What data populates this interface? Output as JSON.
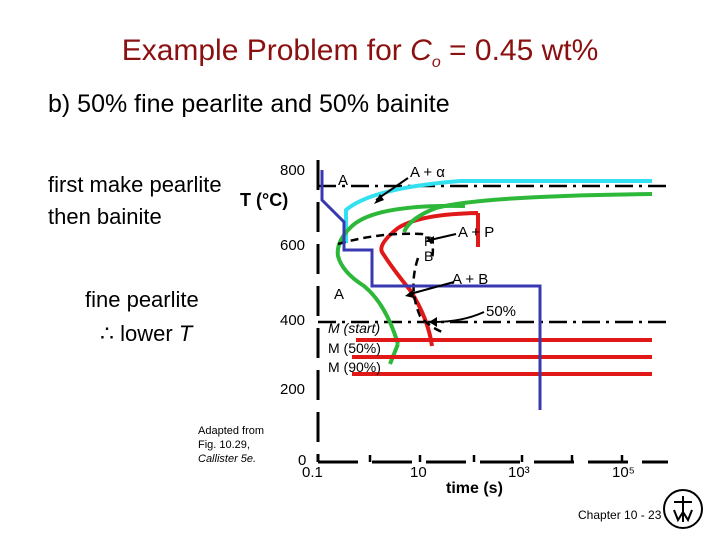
{
  "title": {
    "prefix": "Example Problem for ",
    "var": "C",
    "sub": "o",
    "suffix": " = 0.45 wt%"
  },
  "subtitle": "b) 50% fine pearlite and 50% bainite",
  "notes": {
    "line1": "first make pearlite",
    "line2": "then bainite",
    "line3": "fine pearlite",
    "therefore": "∴",
    "line4_text": "lower ",
    "line4_var": "T"
  },
  "axes": {
    "ylabel": "T (°C)",
    "xlabel": "time (s)",
    "yticks": [
      "800",
      "600",
      "400",
      "200",
      "0"
    ],
    "xticks": [
      "0.1",
      "10",
      "10³",
      "10⁵"
    ]
  },
  "regions": {
    "a_top": "A",
    "a_plus_alpha": "A + α",
    "p": "P",
    "b": "B",
    "a_plus_p": "A + P",
    "a_plus_b": "A + B",
    "a_low": "A",
    "fifty": "50%",
    "m_start": "M (start)",
    "m_50": "M (50%)",
    "m_90": "M (90%)"
  },
  "credit": {
    "line1": "Adapted from",
    "line2": "Fig. 10.29,",
    "line3": "Callister 5e."
  },
  "footer": "Chapter 10 - 23",
  "colors": {
    "title": "#8b1010",
    "cyan": "#33e0f0",
    "green": "#2db83a",
    "red": "#e01818",
    "blue": "#3838b0"
  }
}
